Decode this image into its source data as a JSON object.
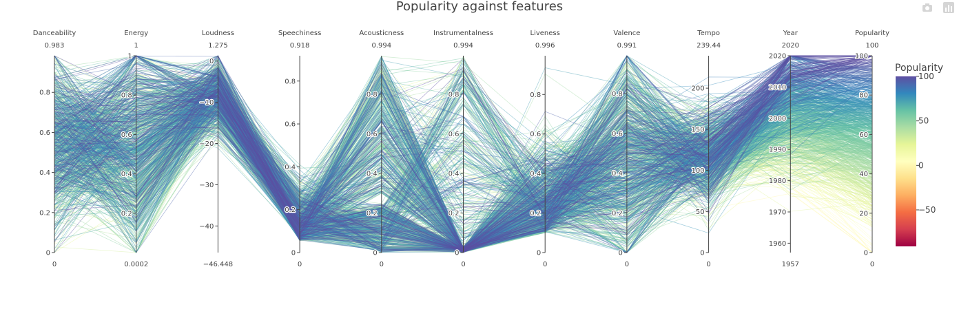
{
  "chart_data": {
    "type": "parallel_coordinates",
    "title": "Popularity against features",
    "color_by": "Popularity",
    "axes": [
      {
        "name": "Danceability",
        "range": [
          0,
          0.983
        ],
        "range_labels": [
          "0",
          "0.983"
        ],
        "ticks": [
          0,
          0.2,
          0.4,
          0.6,
          0.8
        ],
        "tick_labels": [
          "0",
          "0.2",
          "0.4",
          "0.6",
          "0.8"
        ]
      },
      {
        "name": "Energy",
        "range": [
          0.0002,
          1
        ],
        "range_labels": [
          "0.0002",
          "1"
        ],
        "ticks": [
          0.2,
          0.4,
          0.6,
          0.8,
          1
        ],
        "tick_labels": [
          "0.2",
          "0.4",
          "0.6",
          "0.8",
          "1"
        ]
      },
      {
        "name": "Loudness",
        "range": [
          -46.448,
          1.275
        ],
        "range_labels": [
          "−46.448",
          "1.275"
        ],
        "ticks": [
          -40,
          -30,
          -20,
          -10,
          0
        ],
        "tick_labels": [
          "−40",
          "−30",
          "−20",
          "−10",
          "0"
        ]
      },
      {
        "name": "Speechiness",
        "range": [
          0,
          0.918
        ],
        "range_labels": [
          "0",
          "0.918"
        ],
        "ticks": [
          0,
          0.2,
          0.4,
          0.6,
          0.8
        ],
        "tick_labels": [
          "0",
          "0.2",
          "0.4",
          "0.6",
          "0.8"
        ]
      },
      {
        "name": "Acousticness",
        "range": [
          0,
          0.994
        ],
        "range_labels": [
          "0",
          "0.994"
        ],
        "ticks": [
          0,
          0.2,
          0.4,
          0.6,
          0.8
        ],
        "tick_labels": [
          "0",
          "0.2",
          "0.4",
          "0.6",
          "0.8"
        ]
      },
      {
        "name": "Instrumentalness",
        "range": [
          0,
          0.994
        ],
        "range_labels": [
          "0",
          "0.994"
        ],
        "ticks": [
          0,
          0.2,
          0.4,
          0.6,
          0.8
        ],
        "tick_labels": [
          "0",
          "0.2",
          "0.4",
          "0.6",
          "0.8"
        ]
      },
      {
        "name": "Liveness",
        "range": [
          0,
          0.996
        ],
        "range_labels": [
          "0",
          "0.996"
        ],
        "ticks": [
          0,
          0.2,
          0.4,
          0.6,
          0.8
        ],
        "tick_labels": [
          "0",
          "0.2",
          "0.4",
          "0.6",
          "0.8"
        ]
      },
      {
        "name": "Valence",
        "range": [
          0,
          0.991
        ],
        "range_labels": [
          "0",
          "0.991"
        ],
        "ticks": [
          0,
          0.2,
          0.4,
          0.6,
          0.8
        ],
        "tick_labels": [
          "0",
          "0.2",
          "0.4",
          "0.6",
          "0.8"
        ]
      },
      {
        "name": "Tempo",
        "range": [
          0,
          239.44
        ],
        "range_labels": [
          "0",
          "239.44"
        ],
        "ticks": [
          0,
          50,
          100,
          150,
          200
        ],
        "tick_labels": [
          "0",
          "50",
          "100",
          "150",
          "200"
        ]
      },
      {
        "name": "Year",
        "range": [
          1957,
          2020
        ],
        "range_labels": [
          "1957",
          "2020"
        ],
        "ticks": [
          1960,
          1970,
          1980,
          1990,
          2000,
          2010,
          2020
        ],
        "tick_labels": [
          "1960",
          "1970",
          "1980",
          "1990",
          "2000",
          "2010",
          "2020"
        ]
      },
      {
        "name": "Popularity",
        "range": [
          0,
          100
        ],
        "range_labels": [
          "0",
          "100"
        ],
        "ticks": [
          0,
          20,
          40,
          60,
          80,
          100
        ],
        "tick_labels": [
          "0",
          "20",
          "40",
          "60",
          "80",
          "100"
        ]
      }
    ],
    "colorbar": {
      "title": "Popularity",
      "range": [
        -91,
        100
      ],
      "ticks": [
        100,
        50,
        0,
        -50
      ],
      "tick_labels": [
        "100",
        "50",
        "0",
        "−50"
      ],
      "colorscale": [
        "#5e4fa2",
        "#3288bd",
        "#66c2a5",
        "#abdda4",
        "#e6f598",
        "#ffffbf",
        "#fee08b",
        "#fdae61",
        "#f46d43",
        "#d53e4f",
        "#9e0142"
      ]
    }
  },
  "toolbar": {
    "camera_icon": "camera-icon",
    "plotly_logo_icon": "plotly-logo-icon"
  }
}
